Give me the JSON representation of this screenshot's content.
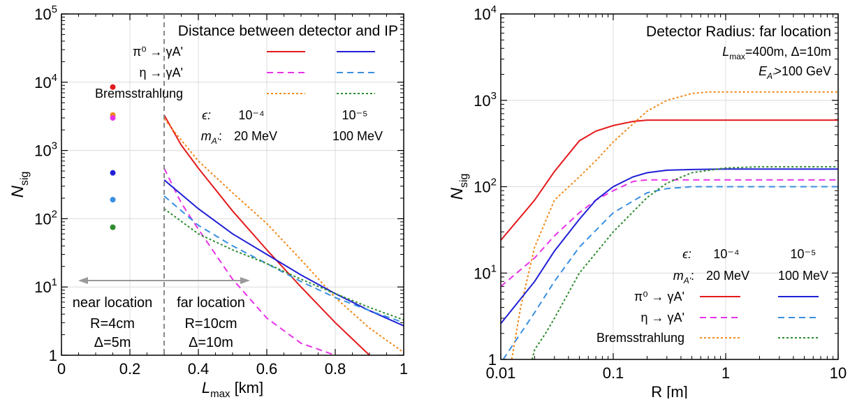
{
  "colors": {
    "pi_1e4": "#e41a1c",
    "eta_1e4": "#e633e6",
    "brems_1e4": "#f28a1a",
    "pi_1e5": "#1f1fd6",
    "eta_1e5": "#3a8fe0",
    "brems_1e5": "#2e8b2e",
    "near_gray": "#999999"
  },
  "chart_data": [
    {
      "type": "line",
      "title": "Distance between detector and IP",
      "xlabel": "L_max [km]",
      "ylabel": "N_sig",
      "xlabel_main": "L",
      "xlabel_sub": "max",
      "xlabel_unit": " [km]",
      "ylabel_main": "N",
      "ylabel_sub": "sig",
      "xlim": [
        0,
        1
      ],
      "ylim": [
        1,
        100000
      ],
      "yscale": "log",
      "grid": true,
      "legend_position": "top-right",
      "x_ticks": [
        "0",
        "0.2",
        "0.4",
        "0.6",
        "0.8",
        "1"
      ],
      "x_tick_values": [
        0,
        0.2,
        0.4,
        0.6,
        0.8,
        1
      ],
      "y_ticks": [
        {
          "value": 1,
          "base": "1",
          "exp": ""
        },
        {
          "value": 10,
          "base": "10",
          "exp": "1"
        },
        {
          "value": 100,
          "base": "10",
          "exp": "2"
        },
        {
          "value": 1000,
          "base": "10",
          "exp": "3"
        },
        {
          "value": 10000,
          "base": "10",
          "exp": "4"
        },
        {
          "value": 100000,
          "base": "10",
          "exp": "5"
        }
      ],
      "legend": {
        "rows": [
          {
            "label": "π⁰ → γA'",
            "left": "pi_1e4",
            "right": "pi_1e5",
            "dash": "solid"
          },
          {
            "label": "η → γA'",
            "left": "eta_1e4",
            "right": "eta_1e5",
            "dash": "dashed"
          },
          {
            "label": "Bremsstrahlung",
            "left": "brems_1e4",
            "right": "brems_1e5",
            "dash": "dotted"
          }
        ],
        "eps_label": "ϵ:",
        "eps_left": "10⁻⁴",
        "eps_right": "10⁻⁵",
        "mass_label": "m_A':",
        "mass_left": "20 MeV",
        "mass_right": "100 MeV"
      },
      "divider_x": 0.3,
      "near_box": {
        "title": "near location",
        "line1": "R=4cm",
        "line2": "Δ=5m"
      },
      "far_box": {
        "title": "far location",
        "line1": "R=10cm",
        "line2": "Δ=10m"
      },
      "near_points": [
        {
          "x": 0.15,
          "y": 8500,
          "color_key": "pi_1e4"
        },
        {
          "x": 0.15,
          "y": 3300,
          "color_key": "brems_1e4"
        },
        {
          "x": 0.15,
          "y": 3000,
          "color_key": "eta_1e4"
        },
        {
          "x": 0.15,
          "y": 470,
          "color_key": "pi_1e5"
        },
        {
          "x": 0.15,
          "y": 190,
          "color_key": "eta_1e5"
        },
        {
          "x": 0.15,
          "y": 75,
          "color_key": "brems_1e5"
        }
      ],
      "series": [
        {
          "key": "pi_1e4",
          "dash": "solid",
          "x": [
            0.3,
            0.35,
            0.4,
            0.5,
            0.6,
            0.7,
            0.8,
            0.9
          ],
          "y": [
            3300,
            1200,
            550,
            130,
            35,
            10,
            3,
            1
          ]
        },
        {
          "key": "eta_1e4",
          "dash": "dashed",
          "x": [
            0.3,
            0.35,
            0.4,
            0.5,
            0.6,
            0.7,
            0.8
          ],
          "y": [
            550,
            170,
            70,
            13,
            3.5,
            1.5,
            1
          ]
        },
        {
          "key": "brems_1e4",
          "dash": "dotted",
          "x": [
            0.3,
            0.4,
            0.5,
            0.6,
            0.7,
            0.8,
            0.9,
            1.0
          ],
          "y": [
            2900,
            700,
            240,
            85,
            25,
            7,
            2.5,
            1.1
          ]
        },
        {
          "key": "pi_1e5",
          "dash": "solid",
          "x": [
            0.3,
            0.4,
            0.5,
            0.6,
            0.7,
            0.8,
            0.9,
            1.0
          ],
          "y": [
            370,
            140,
            60,
            30,
            15,
            8,
            4.5,
            2.7
          ]
        },
        {
          "key": "eta_1e5",
          "dash": "dashed",
          "x": [
            0.3,
            0.4,
            0.5,
            0.6,
            0.7,
            0.8,
            0.9,
            1.0
          ],
          "y": [
            215,
            80,
            40,
            22,
            12,
            7,
            4.5,
            3
          ]
        },
        {
          "key": "brems_1e5",
          "dash": "dotted",
          "x": [
            0.3,
            0.4,
            0.5,
            0.6,
            0.7,
            0.8,
            0.9,
            1.0
          ],
          "y": [
            140,
            60,
            35,
            22,
            13,
            8,
            5,
            3.3
          ]
        }
      ]
    },
    {
      "type": "line",
      "title": "Detector Radius: far location",
      "subtitle1": "L_max=400m, Δ=10m",
      "subtitle2": "E_A'>100 GeV",
      "xlabel": "R [m]",
      "ylabel": "N_sig",
      "ylabel_main": "N",
      "ylabel_sub": "sig",
      "xlim": [
        0.01,
        10
      ],
      "ylim": [
        1,
        10000
      ],
      "xscale": "log",
      "yscale": "log",
      "grid": true,
      "legend_position": "bottom-right",
      "x_ticks": [
        "0.01",
        "0.1",
        "1",
        "10"
      ],
      "x_tick_values": [
        0.01,
        0.1,
        1,
        10
      ],
      "y_ticks": [
        {
          "value": 1,
          "base": "1",
          "exp": ""
        },
        {
          "value": 10,
          "base": "10",
          "exp": "1"
        },
        {
          "value": 100,
          "base": "10",
          "exp": "2"
        },
        {
          "value": 1000,
          "base": "10",
          "exp": "3"
        },
        {
          "value": 10000,
          "base": "10",
          "exp": "4"
        }
      ],
      "legend": {
        "rows": [
          {
            "label": "π⁰ → γA'",
            "left": "pi_1e4",
            "right": "pi_1e5",
            "dash": "solid"
          },
          {
            "label": "η → γA'",
            "left": "eta_1e4",
            "right": "eta_1e5",
            "dash": "dashed"
          },
          {
            "label": "Bremsstrahlung",
            "left": "brems_1e4",
            "right": "brems_1e5",
            "dash": "dotted"
          }
        ],
        "eps_label": "ϵ:",
        "eps_left": "10⁻⁴",
        "eps_right": "10⁻⁵",
        "mass_label": "m_A':",
        "mass_left": "20 MeV",
        "mass_right": "100 MeV"
      },
      "series": [
        {
          "key": "pi_1e4",
          "dash": "solid",
          "x": [
            0.01,
            0.02,
            0.03,
            0.05,
            0.07,
            0.1,
            0.15,
            0.2,
            0.5,
            1,
            10
          ],
          "y": [
            24,
            70,
            150,
            340,
            440,
            510,
            570,
            590,
            590,
            590,
            590
          ]
        },
        {
          "key": "eta_1e4",
          "dash": "dashed",
          "x": [
            0.01,
            0.02,
            0.03,
            0.05,
            0.07,
            0.1,
            0.15,
            0.2,
            0.5,
            1,
            10
          ],
          "y": [
            7,
            15,
            27,
            50,
            70,
            90,
            115,
            120,
            120,
            120,
            120
          ]
        },
        {
          "key": "brems_1e4",
          "dash": "dotted",
          "x": [
            0.0125,
            0.015,
            0.02,
            0.03,
            0.05,
            0.07,
            0.1,
            0.2,
            0.3,
            0.5,
            0.7,
            1,
            2,
            10
          ],
          "y": [
            1,
            4,
            20,
            70,
            130,
            200,
            330,
            750,
            1000,
            1200,
            1250,
            1250,
            1250,
            1250
          ]
        },
        {
          "key": "pi_1e5",
          "dash": "solid",
          "x": [
            0.01,
            0.02,
            0.03,
            0.05,
            0.07,
            0.1,
            0.15,
            0.2,
            0.3,
            0.5,
            1,
            10
          ],
          "y": [
            2.6,
            8,
            18,
            42,
            70,
            100,
            130,
            145,
            155,
            158,
            160,
            160
          ]
        },
        {
          "key": "eta_1e5",
          "dash": "dashed",
          "x": [
            0.0105,
            0.015,
            0.02,
            0.03,
            0.05,
            0.1,
            0.2,
            0.3,
            0.5,
            1,
            10
          ],
          "y": [
            1,
            2,
            3.5,
            8,
            20,
            50,
            85,
            95,
            100,
            100,
            100
          ]
        },
        {
          "key": "brems_1e5",
          "dash": "dotted",
          "x": [
            0.019,
            0.02,
            0.025,
            0.03,
            0.05,
            0.1,
            0.2,
            0.3,
            0.5,
            1,
            2,
            10
          ],
          "y": [
            1,
            1.3,
            2,
            3,
            10,
            30,
            75,
            110,
            145,
            165,
            170,
            170
          ]
        }
      ]
    }
  ]
}
